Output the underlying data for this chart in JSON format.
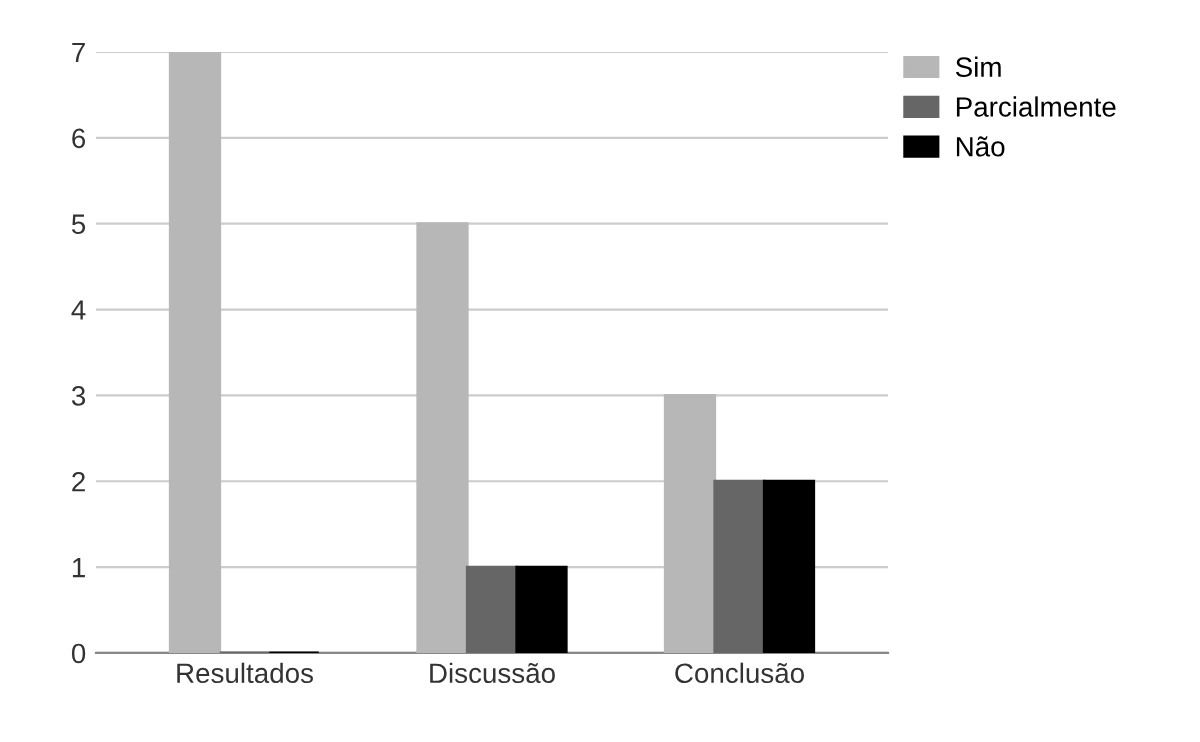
{
  "chart_data": {
    "type": "bar",
    "categories": [
      "Resultados",
      "Discussão",
      "Conclusão"
    ],
    "series": [
      {
        "name": "Sim",
        "color": "#b7b7b7",
        "values": [
          7,
          5,
          3
        ]
      },
      {
        "name": "Parcialmente",
        "color": "#666666",
        "values": [
          0,
          1,
          2
        ]
      },
      {
        "name": "Não",
        "color": "#000000",
        "values": [
          0,
          1,
          2
        ]
      }
    ],
    "ylim": [
      0,
      7
    ],
    "yticks": [
      0,
      1,
      2,
      3,
      4,
      5,
      6,
      7
    ],
    "grid": "y",
    "legend": "top right"
  }
}
